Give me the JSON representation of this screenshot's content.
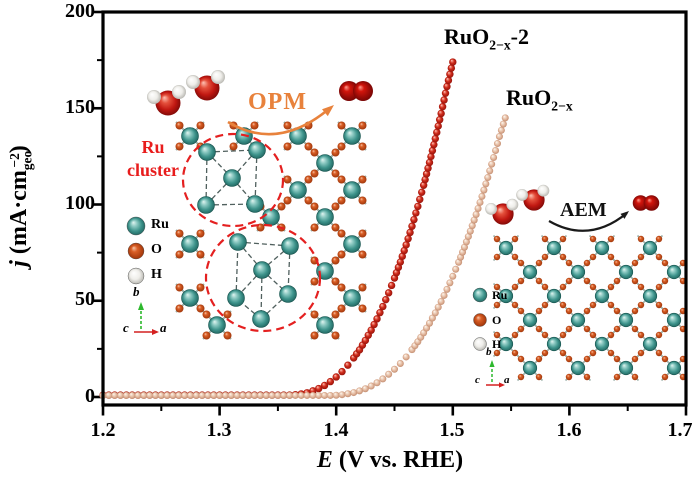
{
  "chart_data": {
    "type": "scatter",
    "title": "",
    "xlabel": {
      "italic": "E",
      "rest": " (V vs. RHE)"
    },
    "ylabel": {
      "j": "j",
      "main": " (mA·cm",
      "sub": "geo",
      "sup": "−2",
      "close": ")"
    },
    "xlim": [
      1.2,
      1.7
    ],
    "ylim": [
      0,
      200
    ],
    "x_ticks": [
      "1.2",
      "1.3",
      "1.4",
      "1.5",
      "1.6",
      "1.7"
    ],
    "y_ticks": [
      "0",
      "50",
      "100",
      "150",
      "200"
    ],
    "x_minor_step": 0.05,
    "y_minor_values": [
      25,
      75,
      125,
      175
    ],
    "grid": false,
    "legend_position": "inset-annotations",
    "series": [
      {
        "name": "RuO2-x-2",
        "label_main": "RuO",
        "label_sub": "2−x",
        "label_suffix": "-2",
        "color": "#c62717",
        "e_start": 1.2,
        "e_step": 0.005,
        "j": [
          1.0,
          1.0,
          1.0,
          1.0,
          1.0,
          1.0,
          1.0,
          1.0,
          1.0,
          1.0,
          1.0,
          1.0,
          1.0,
          1.0,
          1.0,
          1.0,
          1.0,
          1.0,
          1.0,
          1.0,
          1.0,
          1.0,
          1.0,
          1.0,
          1.0,
          1.0,
          1.0,
          1.0,
          1.0,
          1.0,
          1.0,
          1.0,
          1.0,
          1.2,
          1.6,
          2.2,
          3.2,
          4.4,
          6.0,
          8.0,
          10.4,
          13.2,
          16.5,
          20.3,
          24.5,
          29.4,
          34.7,
          40.6,
          47.0,
          54.1,
          61.8,
          70.1,
          79.0,
          88.7,
          99.0,
          110.0,
          121.8,
          134.2,
          147.3,
          161.3,
          174.0
        ]
      },
      {
        "name": "RuO2-x",
        "label_main": "RuO",
        "label_sub": "2−x",
        "label_suffix": "",
        "color": "#e2b69c",
        "e_start": 1.2,
        "e_step": 0.005,
        "j": [
          0.8,
          0.8,
          0.8,
          0.8,
          0.8,
          0.8,
          0.8,
          0.8,
          0.8,
          0.8,
          0.8,
          0.8,
          0.8,
          0.8,
          0.8,
          0.8,
          0.8,
          0.8,
          0.8,
          0.8,
          0.8,
          0.8,
          0.8,
          0.8,
          0.8,
          0.8,
          0.8,
          0.8,
          0.8,
          0.8,
          0.8,
          0.8,
          0.8,
          0.8,
          0.8,
          0.8,
          0.8,
          0.8,
          0.8,
          0.8,
          0.9,
          1.2,
          1.7,
          2.3,
          3.2,
          4.3,
          5.7,
          7.4,
          9.4,
          11.8,
          14.4,
          17.4,
          20.8,
          24.6,
          28.7,
          33.3,
          38.3,
          43.7,
          49.6,
          55.9,
          62.7,
          70.0,
          77.8,
          86.1,
          94.8,
          104.2,
          114.0,
          124.4,
          135.3,
          145.0
        ]
      }
    ]
  },
  "annotations": {
    "opm": "OPM",
    "aem": "AEM",
    "ru_cluster_line1": "Ru",
    "ru_cluster_line2": "cluster"
  },
  "legend": {
    "items": [
      {
        "label": "Ru"
      },
      {
        "label": "O"
      },
      {
        "label": "H"
      }
    ]
  },
  "axes_indicator": {
    "b": "b",
    "c": "c",
    "a": "a"
  },
  "colors": {
    "red_series": "#c62717",
    "tan_series": "#e2b69c",
    "opm_text": "#e8823c",
    "aem_text": "#111111",
    "cluster_text": "#e81c1c",
    "ru_atom": "#3e948c",
    "o_atom": "#cf4a1a",
    "h_atom": "#efeeea",
    "frame": "#000000"
  }
}
